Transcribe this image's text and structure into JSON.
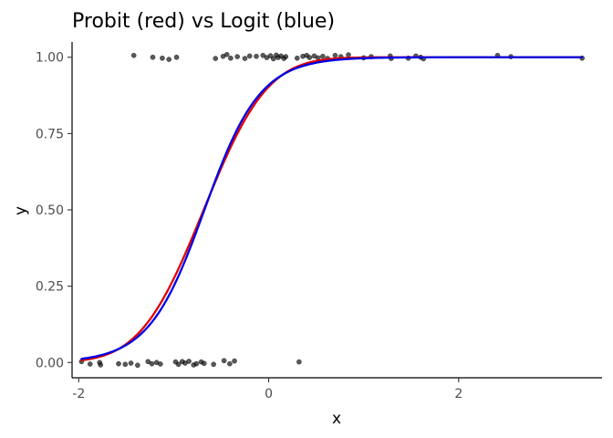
{
  "chart_data": {
    "type": "scatter",
    "title": "Probit (red) vs Logit (blue)",
    "xlabel": "x",
    "ylabel": "y",
    "xlim": [
      -2.07,
      3.51
    ],
    "ylim": [
      -0.05,
      1.05
    ],
    "x_ticks": [
      -2,
      0,
      2
    ],
    "x_tick_labels": [
      "-2",
      "0",
      "2"
    ],
    "y_ticks": [
      0,
      0.25,
      0.5,
      0.75,
      1
    ],
    "y_tick_labels": [
      "0.00",
      "0.25",
      "0.50",
      "0.75",
      "1.00"
    ],
    "grid": false,
    "points": {
      "color": "#000000",
      "opacity": 0.65,
      "data": [
        {
          "x": -1.97,
          "y": 0.003
        },
        {
          "x": -1.88,
          "y": -0.005
        },
        {
          "x": -1.78,
          "y": 0.0
        },
        {
          "x": -1.77,
          "y": -0.008
        },
        {
          "x": -1.58,
          "y": -0.004
        },
        {
          "x": -1.51,
          "y": -0.006
        },
        {
          "x": -1.45,
          "y": -0.002
        },
        {
          "x": -1.38,
          "y": -0.009
        },
        {
          "x": -1.27,
          "y": 0.003
        },
        {
          "x": -1.23,
          "y": -0.004
        },
        {
          "x": -1.18,
          "y": 0.0
        },
        {
          "x": -1.14,
          "y": -0.005
        },
        {
          "x": -0.98,
          "y": 0.002
        },
        {
          "x": -0.95,
          "y": -0.006
        },
        {
          "x": -0.91,
          "y": 0.003
        },
        {
          "x": -0.88,
          "y": -0.002
        },
        {
          "x": -0.84,
          "y": 0.004
        },
        {
          "x": -0.79,
          "y": -0.008
        },
        {
          "x": -0.76,
          "y": -0.004
        },
        {
          "x": -0.71,
          "y": 0.002
        },
        {
          "x": -0.68,
          "y": -0.003
        },
        {
          "x": -0.58,
          "y": -0.006
        },
        {
          "x": -0.47,
          "y": 0.006
        },
        {
          "x": -0.41,
          "y": -0.004
        },
        {
          "x": -0.36,
          "y": 0.005
        },
        {
          "x": 0.32,
          "y": 0.002
        },
        {
          "x": -1.42,
          "y": 1.006
        },
        {
          "x": -1.22,
          "y": 1.0
        },
        {
          "x": -1.12,
          "y": 0.997
        },
        {
          "x": -1.05,
          "y": 0.993
        },
        {
          "x": -0.97,
          "y": 1.0
        },
        {
          "x": -0.56,
          "y": 0.996
        },
        {
          "x": -0.48,
          "y": 1.003
        },
        {
          "x": -0.44,
          "y": 1.009
        },
        {
          "x": -0.4,
          "y": 0.997
        },
        {
          "x": -0.33,
          "y": 1.002
        },
        {
          "x": -0.25,
          "y": 0.996
        },
        {
          "x": -0.2,
          "y": 1.004
        },
        {
          "x": -0.13,
          "y": 1.003
        },
        {
          "x": -0.06,
          "y": 1.006
        },
        {
          "x": -0.02,
          "y": 0.999
        },
        {
          "x": 0.02,
          "y": 1.005
        },
        {
          "x": 0.05,
          "y": 0.995
        },
        {
          "x": 0.08,
          "y": 1.007
        },
        {
          "x": 0.1,
          "y": 0.999
        },
        {
          "x": 0.13,
          "y": 1.004
        },
        {
          "x": 0.16,
          "y": 0.996
        },
        {
          "x": 0.18,
          "y": 1.002
        },
        {
          "x": 0.3,
          "y": 0.997
        },
        {
          "x": 0.36,
          "y": 1.003
        },
        {
          "x": 0.4,
          "y": 1.006
        },
        {
          "x": 0.43,
          "y": 0.999
        },
        {
          "x": 0.48,
          "y": 1.004
        },
        {
          "x": 0.52,
          "y": 0.998
        },
        {
          "x": 0.57,
          "y": 1.003
        },
        {
          "x": 0.62,
          "y": 0.996
        },
        {
          "x": 0.7,
          "y": 1.006
        },
        {
          "x": 0.76,
          "y": 1.002
        },
        {
          "x": 0.84,
          "y": 1.008
        },
        {
          "x": 1.0,
          "y": 0.998
        },
        {
          "x": 1.08,
          "y": 1.002
        },
        {
          "x": 1.28,
          "y": 1.004
        },
        {
          "x": 1.29,
          "y": 0.996
        },
        {
          "x": 1.47,
          "y": 0.997
        },
        {
          "x": 1.55,
          "y": 1.004
        },
        {
          "x": 1.6,
          "y": 1.0
        },
        {
          "x": 1.63,
          "y": 0.995
        },
        {
          "x": 2.41,
          "y": 1.006
        },
        {
          "x": 2.55,
          "y": 1.002
        },
        {
          "x": 3.3,
          "y": 0.997
        }
      ]
    },
    "curves": [
      {
        "link": "probit",
        "color": "#e00000",
        "intercept": 1.3,
        "slope": 1.9,
        "x_range": [
          -1.97,
          3.3
        ]
      },
      {
        "link": "logit",
        "color": "#0000e6",
        "intercept": 2.3,
        "slope": 3.4,
        "x_range": [
          -1.97,
          3.3
        ]
      }
    ]
  }
}
